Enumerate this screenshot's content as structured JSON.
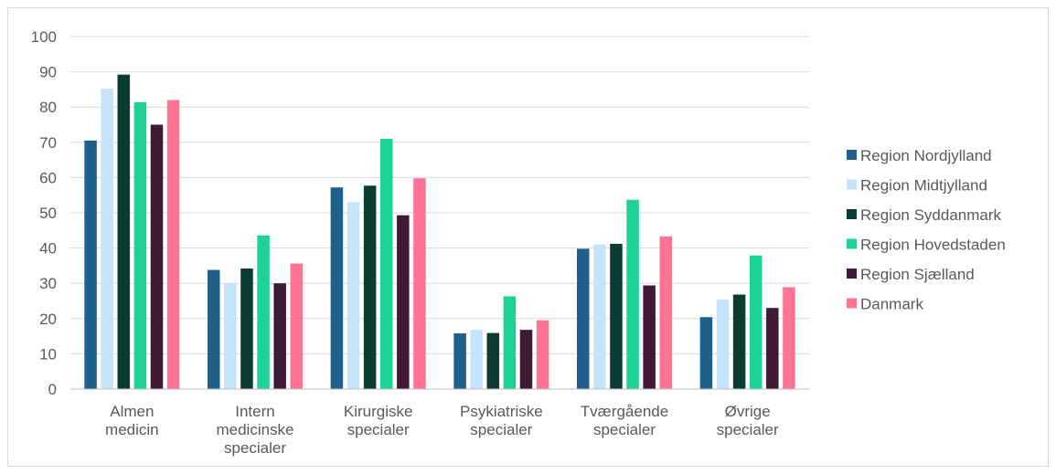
{
  "chart_data": {
    "type": "bar",
    "categories": [
      [
        "Almen",
        "medicin"
      ],
      [
        "Intern",
        "medicinske",
        "specialer"
      ],
      [
        "Kirurgiske",
        "specialer"
      ],
      [
        "Psykiatriske",
        "specialer"
      ],
      [
        "Tværgående",
        "specialer"
      ],
      [
        "Øvrige",
        "specialer"
      ]
    ],
    "series": [
      {
        "name": "Region Nordjylland",
        "color": "#1f5f8b",
        "values": [
          70.5,
          33.8,
          57.2,
          15.8,
          39.8,
          20.4
        ]
      },
      {
        "name": "Region Midtjylland",
        "color": "#c5e3fb",
        "values": [
          85.2,
          30.0,
          53.0,
          16.8,
          41.0,
          25.4
        ]
      },
      {
        "name": "Region Syddanmark",
        "color": "#0b3b33",
        "values": [
          89.2,
          34.2,
          57.7,
          15.9,
          41.2,
          26.8
        ]
      },
      {
        "name": "Region Hovedstaden",
        "color": "#1ed196",
        "values": [
          81.4,
          43.6,
          71.0,
          26.3,
          53.7,
          37.9
        ]
      },
      {
        "name": "Region Sjælland",
        "color": "#3f1a36",
        "values": [
          75.0,
          30.0,
          49.3,
          16.8,
          29.4,
          23.0
        ]
      },
      {
        "name": "Danmark",
        "color": "#ff7393",
        "values": [
          82.0,
          35.6,
          59.8,
          19.5,
          43.3,
          28.9
        ]
      }
    ],
    "y_ticks": [
      "0",
      "10",
      "20",
      "30",
      "40",
      "50",
      "60",
      "70",
      "80",
      "90",
      "100"
    ],
    "ylim": [
      0,
      100
    ],
    "grid": true,
    "legend_position": "right",
    "title": "",
    "xlabel": "",
    "ylabel": ""
  }
}
